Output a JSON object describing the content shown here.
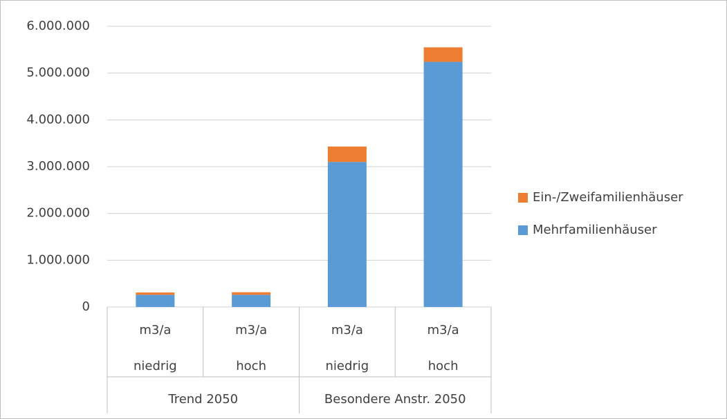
{
  "chart_data": {
    "type": "stacked_bar",
    "groups": [
      {
        "name": "Trend 2050",
        "categories": [
          {
            "unit": "m3/a",
            "label": "niedrig"
          },
          {
            "unit": "m3/a",
            "label": "hoch"
          }
        ]
      },
      {
        "name": "Besondere Anstr. 2050",
        "categories": [
          {
            "unit": "m3/a",
            "label": "niedrig"
          },
          {
            "unit": "m3/a",
            "label": "hoch"
          }
        ]
      }
    ],
    "series": [
      {
        "name": "Mehrfamilienhäuser",
        "color": "#5b9bd5",
        "values": [
          260000,
          260000,
          3100000,
          5240000
        ]
      },
      {
        "name": "Ein-/Zweifamilienhäuser",
        "color": "#ed7d31",
        "values": [
          50000,
          55000,
          330000,
          310000
        ]
      }
    ],
    "ylim": [
      0,
      6000000
    ],
    "yticks": [
      0,
      {
        "value": 1000000,
        "label": "1.000.000"
      },
      {
        "value": 2000000,
        "label": "2.000.000"
      },
      {
        "value": 3000000,
        "label": "3.000.000"
      },
      {
        "value": 4000000,
        "label": "4.000.000"
      },
      {
        "value": 5000000,
        "label": "5.000.000"
      },
      {
        "value": 6000000,
        "label": "6.000.000"
      }
    ],
    "grid": true,
    "legend": "right"
  }
}
